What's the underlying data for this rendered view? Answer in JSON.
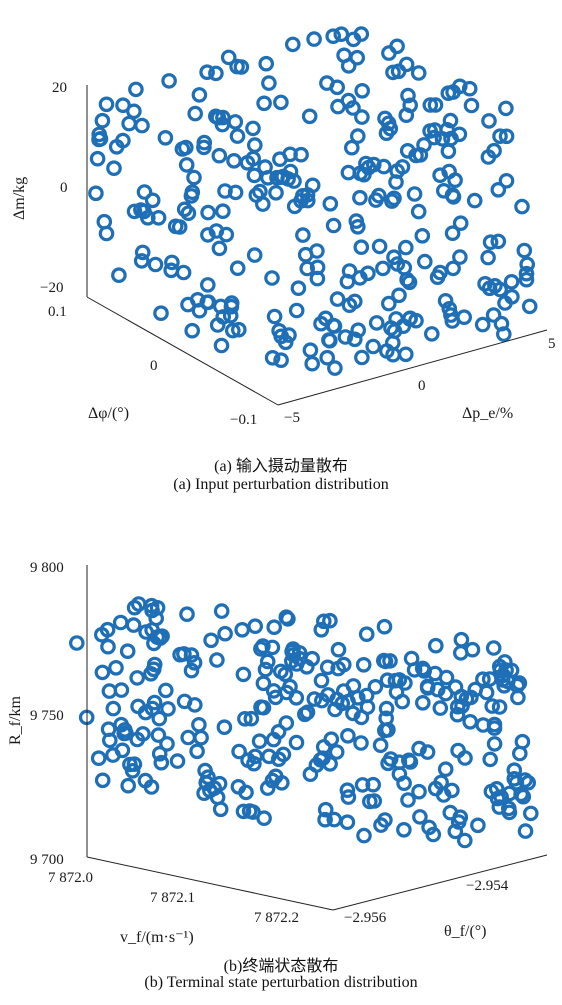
{
  "chart_data": [
    {
      "type": "scatter3d",
      "caption_cn": "(a) 输入摄动量散布",
      "caption_en": "(a) Input perturbation distribution",
      "axes": {
        "x": {
          "label": "Δp_e/%",
          "range": [
            -5,
            5
          ],
          "ticks": [
            "−5",
            "0",
            "5"
          ]
        },
        "y": {
          "label": "Δφ/(°)",
          "range": [
            -0.1,
            0.1
          ],
          "ticks": [
            "−0.1",
            "0",
            "0.1"
          ]
        },
        "z": {
          "label": "Δm/kg",
          "range": [
            -20,
            20
          ],
          "ticks": [
            "−20",
            "0",
            "20"
          ]
        }
      },
      "marker": "open-circle",
      "color": "#1f6fb7",
      "n_points": 300
    },
    {
      "type": "scatter3d",
      "caption_cn": "(b)终端状态散布",
      "caption_en": "(b) Terminal state perturbation distribution",
      "axes": {
        "x": {
          "label": "v_f/(m·s⁻¹)",
          "range": [
            7872.0,
            7872.2
          ],
          "ticks": [
            "7 872.0",
            "7 872.1",
            "7 872.2"
          ]
        },
        "y": {
          "label": "θ_f/(°)",
          "range": [
            -2.956,
            -2.954
          ],
          "ticks": [
            "−2.956",
            "−2.954"
          ]
        },
        "z": {
          "label": "R_f/km",
          "range": [
            9700,
            9800
          ],
          "ticks": [
            "9 700",
            "9 750",
            "9 800"
          ]
        }
      },
      "marker": "open-circle",
      "color": "#1f6fb7",
      "n_points": 300
    }
  ]
}
